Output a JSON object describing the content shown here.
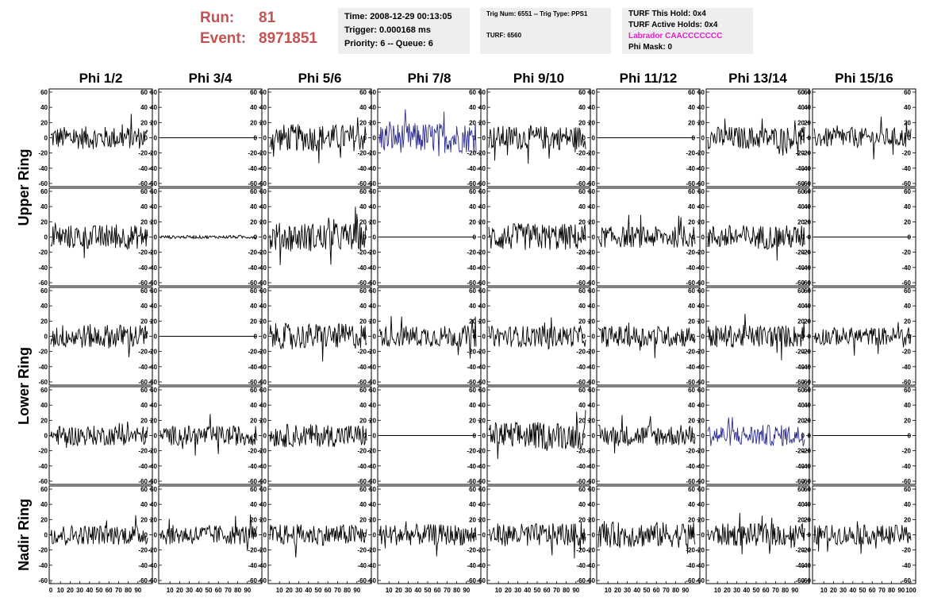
{
  "header": {
    "run_label": "Run:",
    "run_value": "81",
    "event_label": "Event:",
    "event_value": "8971851",
    "time": "Time: 2008-12-29 00:13:05",
    "trigger": "Trigger: 0.000168 ms",
    "priority": "Priority: 6 -- Queue: 6",
    "trig_num": "Trig Num: 6551 -- Trig Type: PPS1",
    "turf": "TURF: 6560",
    "turf_this_hold": "TURF This Hold: 0x4",
    "turf_active_holds": "TURF Active Holds: 0x4",
    "labrador": "Labrador CAACCCCCCC",
    "phi_mask": "Phi Mask: 0"
  },
  "colors": {
    "header_red": "#c75050",
    "highlight_blue": "#2b2b8f",
    "trace_black": "#000000",
    "labrador_magenta": "#e020c8",
    "info_box_bg": "#eeeeee"
  },
  "chart_data": {
    "type": "line",
    "columns": [
      "Phi 1/2",
      "Phi 3/4",
      "Phi 5/6",
      "Phi 7/8",
      "Phi 9/10",
      "Phi 11/12",
      "Phi 13/14",
      "Phi 15/16"
    ],
    "row_groups": [
      {
        "label": "Upper Ring",
        "rows": [
          0,
          1
        ]
      },
      {
        "label": "Lower Ring",
        "rows": [
          2,
          3
        ]
      },
      {
        "label": "Nadir Ring",
        "rows": [
          4
        ]
      }
    ],
    "ylim": [
      -60,
      60
    ],
    "yticks": [
      -60,
      -40,
      -20,
      0,
      20,
      40,
      60
    ],
    "xlim": [
      0,
      100
    ],
    "xtick_labels": [
      "0",
      "10",
      "20",
      "30",
      "40",
      "50",
      "60",
      "70",
      "80",
      "90",
      "100"
    ],
    "traces": [
      [
        {
          "state": "noise",
          "amp": 15,
          "highlight": false
        },
        {
          "state": "flat",
          "amp": 0,
          "highlight": false
        },
        {
          "state": "noise",
          "amp": 18,
          "highlight": false
        },
        {
          "state": "noise",
          "amp": 20,
          "highlight": true
        },
        {
          "state": "noise",
          "amp": 16,
          "highlight": false
        },
        {
          "state": "flat",
          "amp": 0,
          "highlight": false
        },
        {
          "state": "noise",
          "amp": 15,
          "highlight": false
        },
        {
          "state": "noise",
          "amp": 13,
          "highlight": false
        }
      ],
      [
        {
          "state": "noise",
          "amp": 16,
          "highlight": false
        },
        {
          "state": "noise",
          "amp": 2,
          "highlight": false
        },
        {
          "state": "noise",
          "amp": 19,
          "highlight": false
        },
        {
          "state": "flat",
          "amp": 0,
          "highlight": false
        },
        {
          "state": "noise",
          "amp": 18,
          "highlight": false
        },
        {
          "state": "noise",
          "amp": 14,
          "highlight": false
        },
        {
          "state": "noise",
          "amp": 16,
          "highlight": false
        },
        {
          "state": "flat",
          "amp": 0,
          "highlight": false
        }
      ],
      [
        {
          "state": "noise",
          "amp": 16,
          "highlight": false
        },
        {
          "state": "flat",
          "amp": 0,
          "highlight": false
        },
        {
          "state": "noise",
          "amp": 17,
          "highlight": false
        },
        {
          "state": "noise",
          "amp": 14,
          "highlight": false
        },
        {
          "state": "noise",
          "amp": 14,
          "highlight": false
        },
        {
          "state": "noise",
          "amp": 14,
          "highlight": false
        },
        {
          "state": "noise",
          "amp": 15,
          "highlight": false
        },
        {
          "state": "noise",
          "amp": 12,
          "highlight": false
        }
      ],
      [
        {
          "state": "noise",
          "amp": 13,
          "highlight": false
        },
        {
          "state": "noise",
          "amp": 13,
          "highlight": false
        },
        {
          "state": "noise",
          "amp": 15,
          "highlight": false
        },
        {
          "state": "flat",
          "amp": 0,
          "highlight": false
        },
        {
          "state": "noise",
          "amp": 18,
          "highlight": false
        },
        {
          "state": "noise",
          "amp": 14,
          "highlight": false
        },
        {
          "state": "noise",
          "amp": 14,
          "highlight": true
        },
        {
          "state": "flat",
          "amp": 0,
          "highlight": false
        }
      ],
      [
        {
          "state": "noise",
          "amp": 13,
          "highlight": false
        },
        {
          "state": "noise",
          "amp": 13,
          "highlight": false
        },
        {
          "state": "noise",
          "amp": 14,
          "highlight": false
        },
        {
          "state": "noise",
          "amp": 14,
          "highlight": false
        },
        {
          "state": "noise",
          "amp": 15,
          "highlight": false
        },
        {
          "state": "noise",
          "amp": 17,
          "highlight": false
        },
        {
          "state": "noise",
          "amp": 15,
          "highlight": false
        },
        {
          "state": "noise",
          "amp": 13,
          "highlight": false
        }
      ]
    ]
  }
}
